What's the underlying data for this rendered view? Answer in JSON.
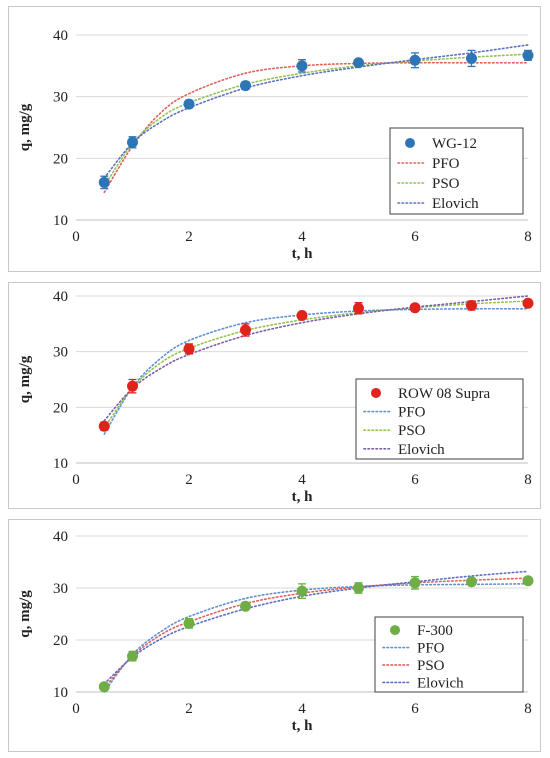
{
  "chart_data": [
    {
      "type": "scatter",
      "xlabel": "t, h",
      "ylabel": "q, mg/g",
      "xlim": [
        0,
        8
      ],
      "ylim": [
        10,
        40
      ],
      "xticks": [
        "0",
        "2",
        "4",
        "6",
        "8"
      ],
      "yticks": [
        "10",
        "20",
        "30",
        "40"
      ],
      "grid": "horizontal",
      "legend_position": "bottom-right",
      "points": {
        "name": "WG-12",
        "color": "#2e75b6",
        "x": [
          0.5,
          1,
          2,
          3,
          4,
          5,
          6,
          7,
          8
        ],
        "y": [
          16.1,
          22.6,
          28.8,
          31.8,
          35.0,
          35.5,
          35.9,
          36.2,
          36.7
        ],
        "err": [
          1.0,
          0.9,
          0.6,
          0.6,
          1.0,
          0.4,
          1.2,
          1.3,
          0.8
        ]
      },
      "series": [
        {
          "name": "PFO",
          "color": "#e0605a",
          "x": [
            0.5,
            1,
            1.5,
            2,
            3,
            4,
            5,
            6,
            7,
            8
          ],
          "y": [
            14.5,
            22.0,
            27.4,
            30.5,
            33.8,
            35.0,
            35.4,
            35.5,
            35.5,
            35.5
          ]
        },
        {
          "name": "PSO",
          "color": "#92c24e",
          "x": [
            0.5,
            1,
            1.5,
            2,
            3,
            4,
            5,
            6,
            7,
            8
          ],
          "y": [
            15.5,
            22.4,
            26.6,
            29.0,
            32.0,
            33.8,
            35.0,
            35.8,
            36.4,
            36.9
          ]
        },
        {
          "name": "Elovich",
          "color": "#5b6fc4",
          "x": [
            0.5,
            1,
            1.5,
            2,
            3,
            4,
            5,
            6,
            7,
            8
          ],
          "y": [
            16.8,
            22.5,
            25.9,
            28.2,
            31.4,
            33.4,
            34.8,
            36.0,
            37.1,
            38.4
          ]
        }
      ]
    },
    {
      "type": "scatter",
      "xlabel": "t, h",
      "ylabel": "q, mg/g",
      "xlim": [
        0,
        8
      ],
      "ylim": [
        10,
        40
      ],
      "xticks": [
        "0",
        "2",
        "4",
        "6",
        "8"
      ],
      "yticks": [
        "10",
        "20",
        "30",
        "40"
      ],
      "grid": "horizontal",
      "legend_position": "bottom-right",
      "points": {
        "name": "ROW 08 Supra",
        "color": "#e0231b",
        "x": [
          0.5,
          1,
          2,
          3,
          4,
          5,
          6,
          7,
          8
        ],
        "y": [
          16.6,
          23.8,
          30.5,
          33.9,
          36.5,
          37.8,
          37.9,
          38.3,
          38.7
        ],
        "err": [
          0.7,
          1.2,
          0.9,
          1.1,
          0.6,
          1.0,
          0.5,
          0.8,
          0.6
        ]
      },
      "series": [
        {
          "name": "PFO",
          "color": "#5b8fd6",
          "x": [
            0.5,
            1,
            1.5,
            2,
            3,
            4,
            5,
            6,
            7,
            8
          ],
          "y": [
            15.2,
            23.6,
            28.8,
            32.0,
            35.2,
            36.6,
            37.3,
            37.6,
            37.7,
            37.7
          ]
        },
        {
          "name": "PSO",
          "color": "#92c24e",
          "x": [
            0.5,
            1,
            1.5,
            2,
            3,
            4,
            5,
            6,
            7,
            8
          ],
          "y": [
            16.3,
            23.5,
            28.0,
            30.6,
            33.8,
            35.7,
            37.0,
            37.9,
            38.6,
            39.1
          ]
        },
        {
          "name": "Elovich",
          "color": "#7a5fa8",
          "x": [
            0.5,
            1,
            1.5,
            2,
            3,
            4,
            5,
            6,
            7,
            8
          ],
          "y": [
            17.6,
            23.4,
            27.0,
            29.5,
            32.9,
            35.2,
            36.8,
            38.0,
            39.0,
            40.0
          ]
        }
      ]
    },
    {
      "type": "scatter",
      "xlabel": "t, h",
      "ylabel": "q, mg/g",
      "xlim": [
        0,
        8
      ],
      "ylim": [
        10,
        40
      ],
      "xticks": [
        "0",
        "2",
        "4",
        "6",
        "8"
      ],
      "yticks": [
        "10",
        "20",
        "30",
        "40"
      ],
      "grid": "horizontal",
      "legend_position": "bottom-right",
      "points": {
        "name": "F-300",
        "color": "#70ad47",
        "x": [
          0.5,
          1,
          2,
          3,
          4,
          5,
          6,
          7,
          8
        ],
        "y": [
          11.0,
          16.9,
          23.2,
          26.5,
          29.4,
          30.0,
          31.0,
          31.2,
          31.4
        ],
        "err": [
          0.6,
          0.9,
          0.9,
          0.7,
          1.4,
          1.0,
          1.2,
          0.6,
          0.6
        ]
      },
      "series": [
        {
          "name": "PFO",
          "color": "#5b8fd6",
          "x": [
            0.5,
            1,
            1.5,
            2,
            3,
            4,
            5,
            6,
            7,
            8
          ],
          "y": [
            10.0,
            17.2,
            21.6,
            24.5,
            28.0,
            29.6,
            30.3,
            30.6,
            30.7,
            30.8
          ]
        },
        {
          "name": "PSO",
          "color": "#e0605a",
          "x": [
            0.5,
            1,
            1.5,
            2,
            3,
            4,
            5,
            6,
            7,
            8
          ],
          "y": [
            10.8,
            16.9,
            21.0,
            23.5,
            27.0,
            29.0,
            30.2,
            31.0,
            31.5,
            31.9
          ]
        },
        {
          "name": "Elovich",
          "color": "#5b6fc4",
          "x": [
            0.5,
            1,
            1.5,
            2,
            3,
            4,
            5,
            6,
            7,
            8
          ],
          "y": [
            11.6,
            16.7,
            20.2,
            22.6,
            26.0,
            28.4,
            30.0,
            31.2,
            32.3,
            33.2
          ]
        }
      ]
    }
  ]
}
